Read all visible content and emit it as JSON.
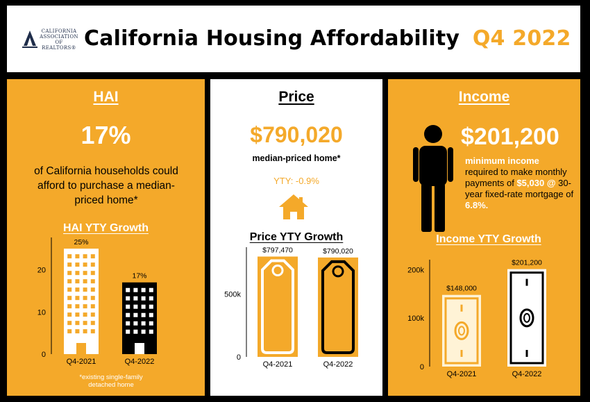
{
  "header": {
    "logo_lines": [
      "CALIFORNIA",
      "ASSOCIATION",
      "OF REALTORS®"
    ],
    "title": "California Housing Affordability",
    "period": "Q4 2022"
  },
  "hai": {
    "heading": "HAI",
    "big_value": "17%",
    "desc": "of California households could afford to purchase a median-priced home*",
    "footnote": "*existing single-family detached home"
  },
  "price": {
    "heading": "Price",
    "big_value": "$790,020",
    "sub": "median-priced home*",
    "yty": "YTY: -0.9%"
  },
  "income": {
    "heading": "Income",
    "big_value": "$201,200",
    "desc_part1": "minimum income",
    "desc_part2": "required to make monthly payments of",
    "desc_part3": "$5,030 @",
    "desc_part4": "30-year fixed-rate mortgage of",
    "desc_part5": "6.8%."
  },
  "chart_data": [
    {
      "type": "bar",
      "title": "HAI YTY Growth",
      "categories": [
        "Q4-2021",
        "Q4-2022"
      ],
      "values": [
        25,
        17
      ],
      "data_labels": [
        "25%",
        "17%"
      ],
      "y_ticks": [
        "0",
        "10",
        "20"
      ],
      "ylim": [
        0,
        27
      ],
      "colors": [
        "#FFFFFF",
        "#000000"
      ]
    },
    {
      "type": "bar",
      "title": "Price YTY Growth",
      "categories": [
        "Q4-2021",
        "Q4-2022"
      ],
      "values": [
        797470,
        790020
      ],
      "data_labels": [
        "$797,470",
        "$790,020"
      ],
      "y_ticks": [
        "0",
        "500k"
      ],
      "ylim": [
        0,
        850000
      ],
      "colors": [
        "#F4A92A",
        "#F4A92A"
      ]
    },
    {
      "type": "bar",
      "title": "Income YTY Growth",
      "categories": [
        "Q4-2021",
        "Q4-2022"
      ],
      "values": [
        148000,
        201200
      ],
      "data_labels": [
        "$148,000",
        "$201,200"
      ],
      "y_ticks": [
        "0",
        "100k",
        "200k"
      ],
      "ylim": [
        0,
        215000
      ],
      "colors": [
        "#FFF3D6",
        "#FFFFFF"
      ]
    }
  ]
}
